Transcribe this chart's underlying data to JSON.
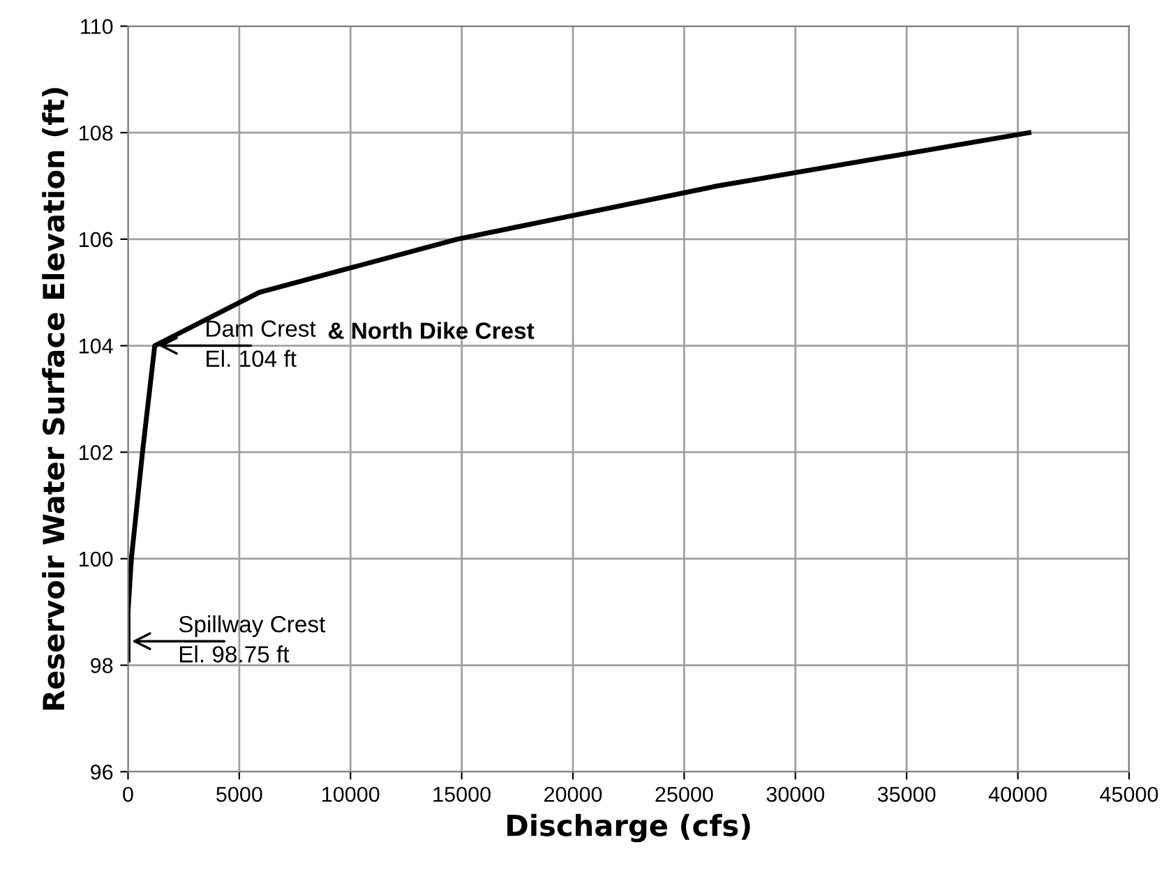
{
  "chart_data": {
    "type": "line",
    "xlabel": "Discharge (cfs)",
    "ylabel": "Reservoir Water Surface Elevation (ft)",
    "x": [
      0,
      0,
      150,
      650,
      1200,
      5900,
      14800,
      26500,
      40500
    ],
    "series": [
      {
        "color": "#000000",
        "values": [
          98.1,
          99,
          100,
          102,
          104,
          105,
          106,
          107,
          108
        ]
      }
    ],
    "xlim": [
      0,
      45000
    ],
    "xticks": [
      0,
      5000,
      10000,
      15000,
      20000,
      25000,
      30000,
      35000,
      40000,
      45000
    ],
    "ylim": [
      96,
      110
    ],
    "yticks": [
      96,
      98,
      100,
      102,
      104,
      106,
      108,
      110
    ],
    "grid": true,
    "legend": false,
    "marker": "none",
    "line_style": "solid",
    "annotations": [
      {
        "text": "Dam Crest\nEl. 104 ft",
        "x": 1200,
        "y": 104
      },
      "& North Dike Crest",
      {
        "text": "Spillway Crest\nEl. 98.75 ft",
        "x": 0,
        "y": 98.45
      }
    ]
  }
}
